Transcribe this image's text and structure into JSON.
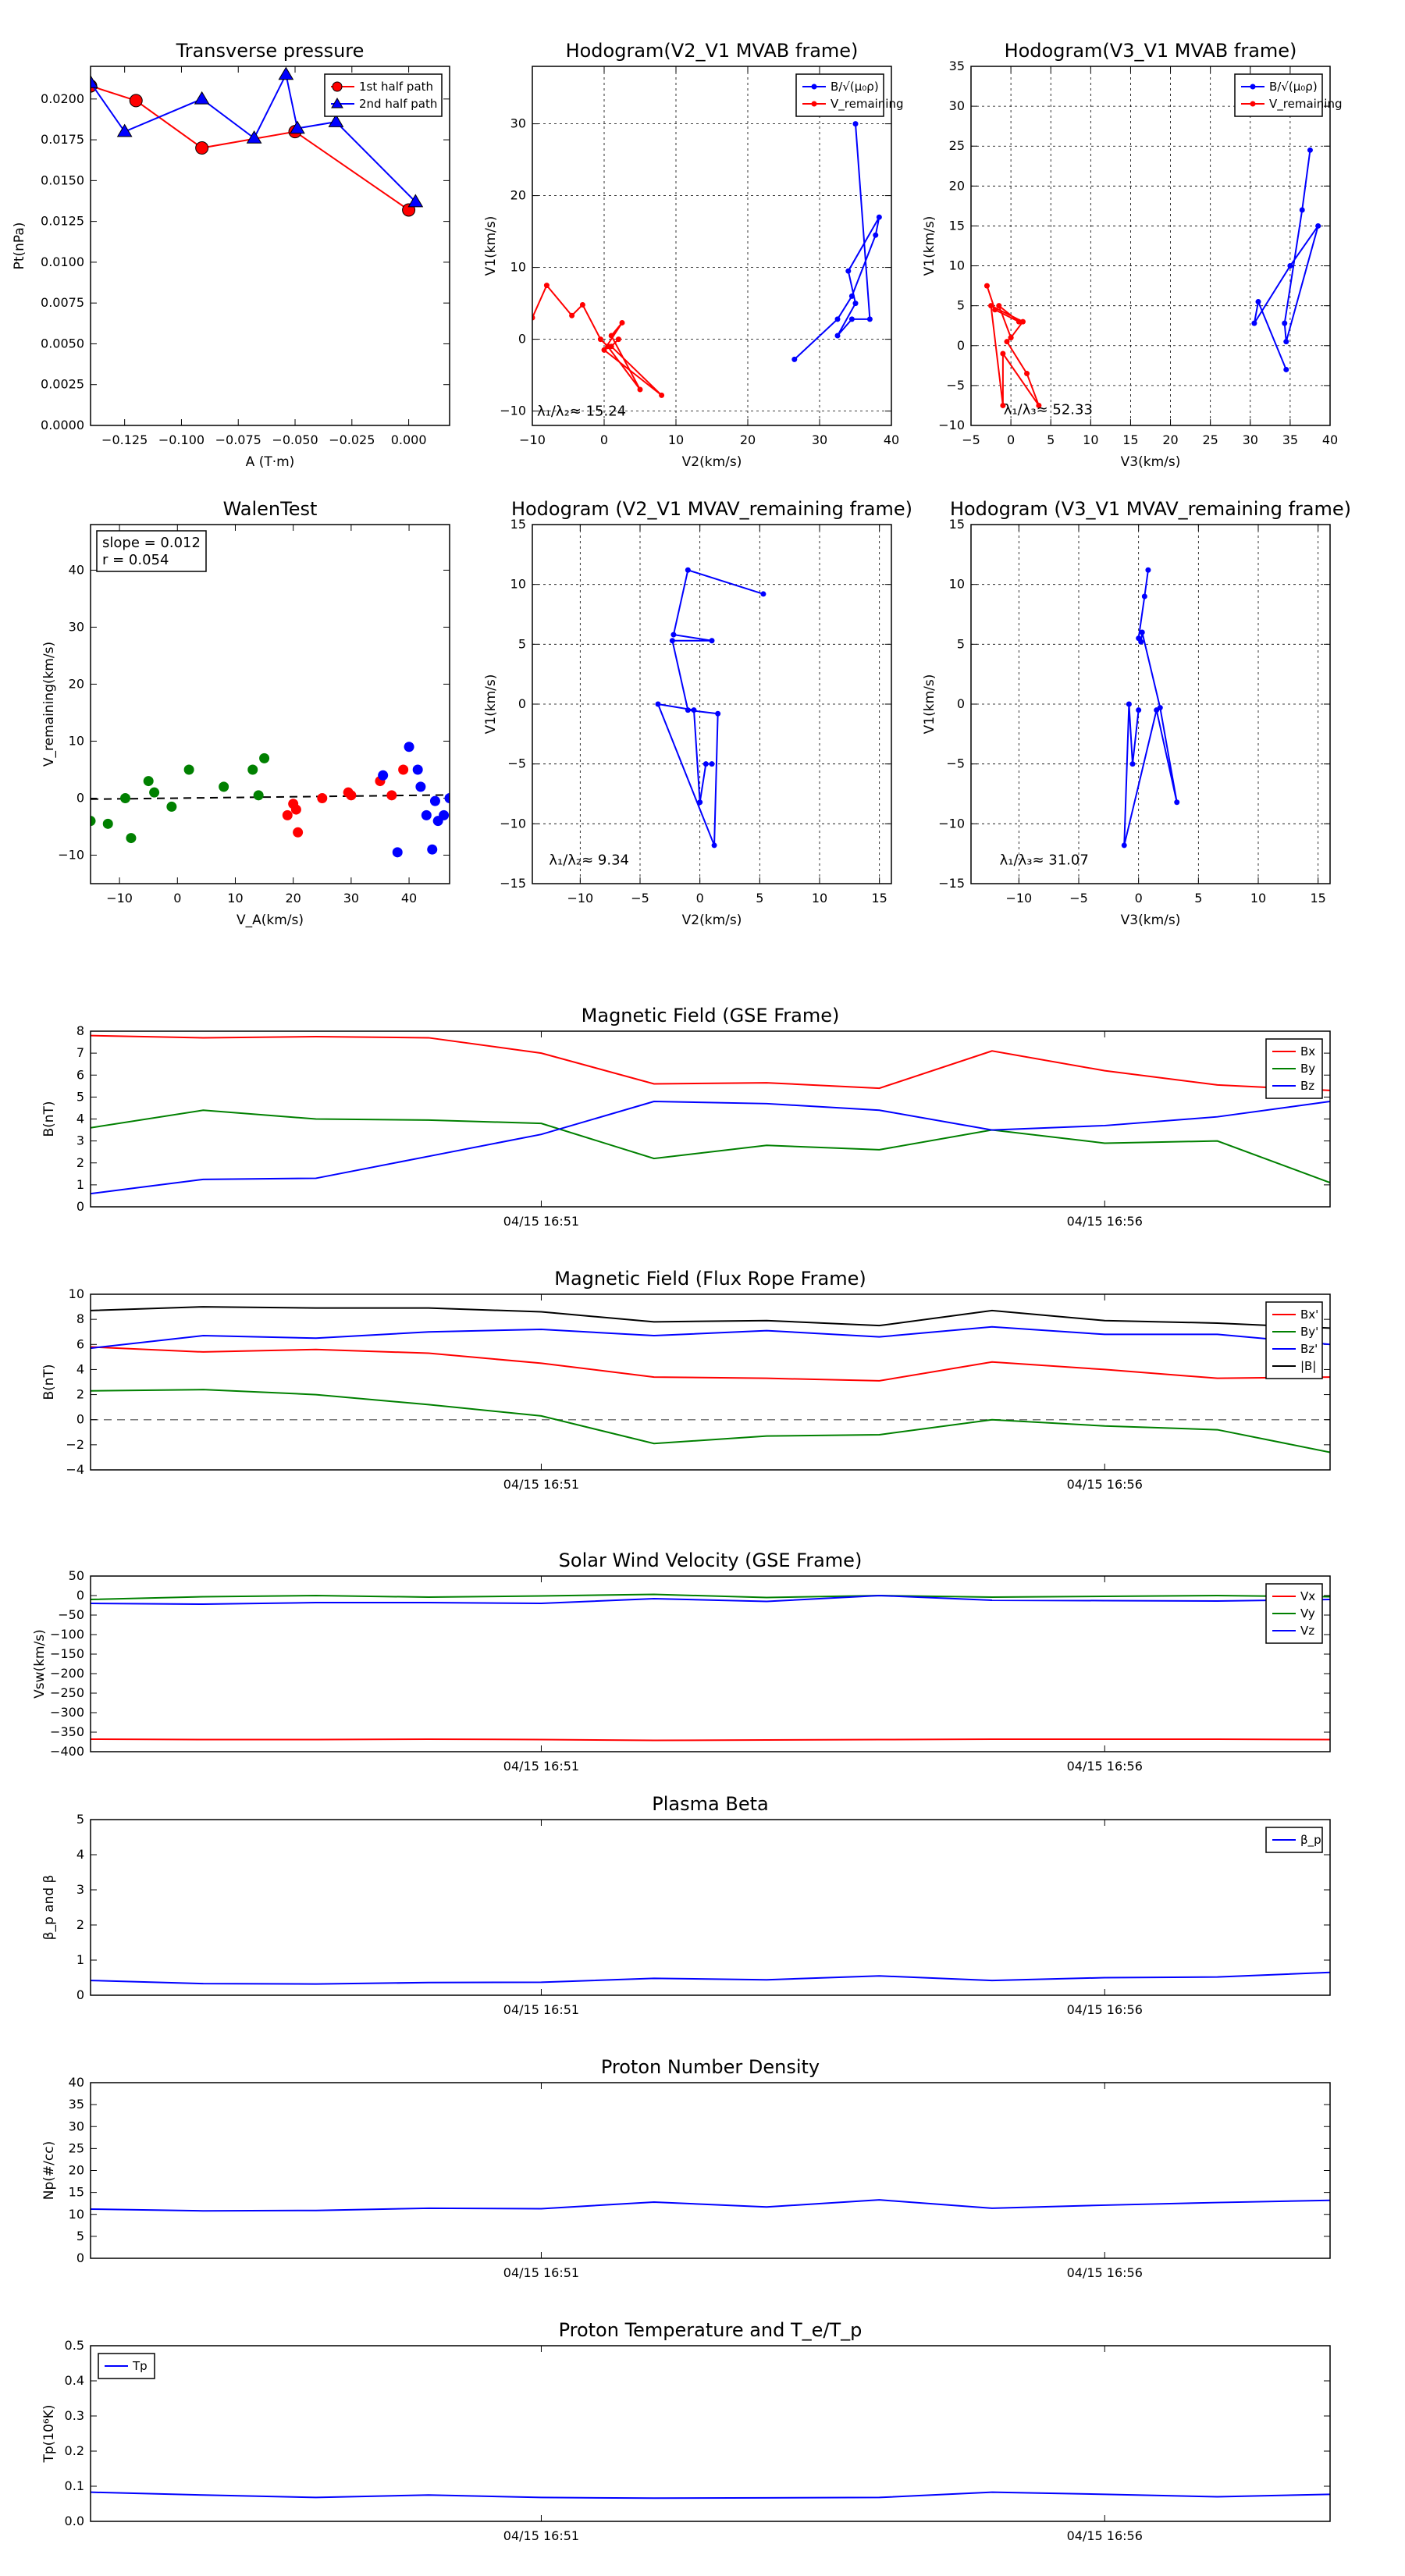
{
  "chart_data": [
    {
      "id": "tp",
      "type": "line",
      "title": "Transverse pressure",
      "xlabel": "A (T·m)",
      "ylabel": "Pt(nPa)",
      "xlim": [
        -0.14,
        0.018
      ],
      "ylim": [
        0,
        0.022
      ],
      "xticks": [
        -0.125,
        -0.1,
        -0.075,
        -0.05,
        -0.025,
        0.0
      ],
      "xtick_labels": [
        "−0.125",
        "−0.100",
        "−0.075",
        "−0.050",
        "−0.025",
        "0.000"
      ],
      "yticks": [
        0,
        0.0025,
        0.005,
        0.0075,
        0.01,
        0.0125,
        0.015,
        0.0175,
        0.02
      ],
      "ytick_labels": [
        "0.0000",
        "0.0025",
        "0.0050",
        "0.0075",
        "0.0100",
        "0.0125",
        "0.0150",
        "0.0175",
        "0.0200"
      ],
      "grid": false,
      "legend": "top-right",
      "series": [
        {
          "name": "1st half path",
          "color": "#ff0000",
          "marker": "circle",
          "x": [
            -0.14,
            -0.12,
            -0.091,
            -0.05,
            0.0
          ],
          "y": [
            0.0208,
            0.0199,
            0.017,
            0.018,
            0.0132
          ]
        },
        {
          "name": "2nd half path",
          "color": "#0000ff",
          "marker": "triangle",
          "x": [
            -0.14,
            -0.125,
            -0.091,
            -0.068,
            -0.054,
            -0.049,
            -0.032,
            0.003
          ],
          "y": [
            0.021,
            0.018,
            0.02,
            0.0176,
            0.0215,
            0.0182,
            0.0186,
            0.0137
          ]
        }
      ]
    },
    {
      "id": "hodo1",
      "type": "line",
      "title": "Hodogram(V2_V1 MVAB frame)",
      "xlabel": "V2(km/s)",
      "ylabel": "V1(km/s)",
      "xlim": [
        -10,
        40
      ],
      "ylim": [
        -12,
        38
      ],
      "xticks": [
        -10,
        0,
        10,
        20,
        30,
        40
      ],
      "xtick_labels": [
        "−10",
        "0",
        "10",
        "20",
        "30",
        "40"
      ],
      "yticks": [
        -10,
        0,
        10,
        20,
        30
      ],
      "ytick_labels": [
        "−10",
        "0",
        "10",
        "20",
        "30"
      ],
      "grid": true,
      "legend": "top-right",
      "annotation": {
        "text": "λ₁/λ₂≈ 15.24",
        "x": -10,
        "y": -10
      },
      "series": [
        {
          "name": "B/√(μ₀ρ)",
          "color": "#0000ff",
          "x": [
            26.5,
            32.5,
            34.5,
            37.8,
            38.3,
            34.0,
            35.0,
            32.5,
            34.5,
            37.0,
            35.0
          ],
          "y": [
            -2.8,
            2.8,
            6.0,
            14.5,
            17.0,
            9.5,
            5.0,
            0.5,
            2.8,
            2.8,
            30.0
          ]
        },
        {
          "name": "V_remaining",
          "color": "#ff0000",
          "x": [
            -10,
            -8,
            -4.5,
            -3,
            -0.5,
            0.5,
            5.0,
            1.0,
            2.5,
            0.0,
            8.0,
            1.0,
            2.0
          ],
          "y": [
            3.0,
            7.5,
            3.3,
            4.8,
            0.0,
            -1.0,
            -7.0,
            0.5,
            2.3,
            -1.5,
            -7.8,
            -1.0,
            0.0
          ]
        }
      ]
    },
    {
      "id": "hodo2",
      "type": "line",
      "title": "Hodogram(V3_V1 MVAB frame)",
      "xlabel": "V3(km/s)",
      "ylabel": "V1(km/s)",
      "xlim": [
        -5,
        40
      ],
      "ylim": [
        -10,
        35
      ],
      "xticks": [
        -5,
        0,
        5,
        10,
        15,
        20,
        25,
        30,
        35,
        40
      ],
      "xtick_labels": [
        "−5",
        "0",
        "5",
        "10",
        "15",
        "20",
        "25",
        "30",
        "35",
        "40"
      ],
      "yticks": [
        -10,
        -5,
        0,
        5,
        10,
        15,
        20,
        25,
        30,
        35
      ],
      "ytick_labels": [
        "−10",
        "−5",
        "0",
        "5",
        "10",
        "15",
        "20",
        "25",
        "30",
        "35"
      ],
      "grid": true,
      "legend": "top-right",
      "annotation": {
        "text": "λ₁/λ₃≈ 52.33",
        "x": -1.5,
        "y": -8.0
      },
      "series": [
        {
          "name": "B/√(μ₀ρ)",
          "color": "#0000ff",
          "x": [
            34.5,
            31.0,
            30.5,
            35.0,
            38.5,
            34.5,
            34.3,
            36.5,
            37.5
          ],
          "y": [
            -3.0,
            5.5,
            2.8,
            10.0,
            15.0,
            0.5,
            2.8,
            17.0,
            24.5
          ]
        },
        {
          "name": "V_remaining",
          "color": "#ff0000",
          "x": [
            -3.0,
            -2.0,
            1.0,
            -1.5,
            0.0,
            -0.5,
            2.0,
            3.5,
            -1.0,
            -1.0,
            -2.5,
            1.5,
            0.0
          ],
          "y": [
            7.5,
            4.5,
            3.0,
            5.0,
            1.0,
            0.5,
            -3.5,
            -7.5,
            -1.0,
            -7.5,
            5.0,
            3.0,
            1.0
          ]
        }
      ]
    },
    {
      "id": "walen",
      "type": "scatter",
      "title": "WalenTest",
      "xlabel": "V_A(km/s)",
      "ylabel": "V_remaining(km/s)",
      "xlim": [
        -15,
        47
      ],
      "ylim": [
        -15,
        48
      ],
      "xticks": [
        -10,
        0,
        10,
        20,
        30,
        40
      ],
      "xtick_labels": [
        "−10",
        "0",
        "10",
        "20",
        "30",
        "40"
      ],
      "yticks": [
        -10,
        0,
        10,
        20,
        30,
        40
      ],
      "ytick_labels": [
        "−10",
        "0",
        "10",
        "20",
        "30",
        "40"
      ],
      "grid": false,
      "fit_line": {
        "slope": 0.012,
        "intercept": 0
      },
      "annotation_lines": [
        "slope = 0.012",
        "r = 0.054"
      ],
      "series": [
        {
          "name": "green",
          "color": "#008000",
          "x": [
            -15,
            -12,
            -9,
            -8,
            -5,
            -4,
            -1,
            2,
            8,
            13,
            14,
            15
          ],
          "y": [
            -4,
            -4.5,
            0,
            -7,
            3,
            1,
            -1.5,
            5,
            2,
            5,
            0.5,
            7
          ]
        },
        {
          "name": "red",
          "color": "#ff0000",
          "x": [
            19,
            20,
            20.5,
            20.8,
            25,
            29.5,
            30,
            35,
            37,
            39
          ],
          "y": [
            -3,
            -1,
            -2,
            -6,
            0,
            1,
            0.5,
            3,
            0.5,
            5
          ]
        },
        {
          "name": "blue",
          "color": "#0000ff",
          "x": [
            35.5,
            38,
            40,
            41.5,
            42,
            43,
            44,
            44.5,
            45,
            46,
            47
          ],
          "y": [
            4,
            -9.5,
            9,
            5,
            2,
            -3,
            -9,
            -0.5,
            -4,
            -3,
            0
          ]
        }
      ]
    },
    {
      "id": "hodo3",
      "type": "line",
      "title": "Hodogram (V2_V1 MVAV_remaining frame)",
      "xlabel": "V2(km/s)",
      "ylabel": "V1(km/s)",
      "xlim": [
        -14,
        16
      ],
      "ylim": [
        -15,
        15
      ],
      "xticks": [
        -10,
        -5,
        0,
        5,
        10,
        15
      ],
      "xtick_labels": [
        "−10",
        "−5",
        "0",
        "5",
        "10",
        "15"
      ],
      "yticks": [
        -15,
        -10,
        -5,
        0,
        5,
        10,
        15
      ],
      "ytick_labels": [
        "−15",
        "−10",
        "−5",
        "0",
        "5",
        "10",
        "15"
      ],
      "grid": true,
      "annotation": {
        "text": "λ₁/λ₂≈ 9.34",
        "x": -13,
        "y": -13
      },
      "series": [
        {
          "name": "V_remaining",
          "color": "#0000ff",
          "x": [
            5.3,
            -1.0,
            -2.2,
            1.0,
            -2.3,
            -1.0,
            1.5,
            1.2,
            -3.5,
            -0.5,
            0.0,
            0.5,
            1.0
          ],
          "y": [
            9.2,
            11.2,
            5.8,
            5.3,
            5.3,
            -0.5,
            -0.8,
            -11.8,
            0.0,
            -0.5,
            -8.2,
            -5.0,
            -5.0
          ]
        }
      ]
    },
    {
      "id": "hodo4",
      "type": "line",
      "title": "Hodogram (V3_V1 MVAV_remaining frame)",
      "xlabel": "V3(km/s)",
      "ylabel": "V1(km/s)",
      "xlim": [
        -14,
        16
      ],
      "ylim": [
        -15,
        15
      ],
      "xticks": [
        -10,
        -5,
        0,
        5,
        10,
        15
      ],
      "xtick_labels": [
        "−10",
        "−5",
        "0",
        "5",
        "10",
        "15"
      ],
      "yticks": [
        -15,
        -10,
        -5,
        0,
        5,
        10,
        15
      ],
      "ytick_labels": [
        "−15",
        "−10",
        "−5",
        "0",
        "5",
        "10",
        "15"
      ],
      "grid": true,
      "annotation": {
        "text": "λ₁/λ₃≈ 31.07",
        "x": -12,
        "y": -13
      },
      "series": [
        {
          "name": "V_remaining",
          "color": "#0000ff",
          "x": [
            0.8,
            0.5,
            0.0,
            0.2,
            0.3,
            1.8,
            3.2,
            1.5,
            -1.2,
            -0.8,
            -0.5,
            0.0
          ],
          "y": [
            11.2,
            9.0,
            5.5,
            5.2,
            6.0,
            -0.3,
            -8.2,
            -0.5,
            -11.8,
            0.0,
            -5.0,
            -0.5
          ]
        }
      ]
    },
    {
      "id": "mag_gse",
      "type": "line",
      "title": "Magnetic Field (GSE Frame)",
      "ylabel": "B(nT)",
      "ylim": [
        0,
        8
      ],
      "yticks": [
        0,
        1,
        2,
        3,
        4,
        5,
        6,
        7,
        8
      ],
      "ytick_labels": [
        "0",
        "1",
        "2",
        "3",
        "4",
        "5",
        "6",
        "7",
        "8"
      ],
      "xlim": [
        0,
        11
      ],
      "xticks": [
        4,
        9
      ],
      "xtick_labels": [
        "04/15 16:51",
        "04/15 16:56"
      ],
      "grid": false,
      "legend": "top-right",
      "series": [
        {
          "name": "Bx",
          "color": "#ff0000",
          "values": [
            7.8,
            7.7,
            7.75,
            7.7,
            7.0,
            5.6,
            5.65,
            5.4,
            7.1,
            6.2,
            5.55,
            5.3
          ]
        },
        {
          "name": "By",
          "color": "#008000",
          "values": [
            3.6,
            4.4,
            4.0,
            3.95,
            3.8,
            2.2,
            2.8,
            2.6,
            3.5,
            2.9,
            3.0,
            1.1
          ]
        },
        {
          "name": "Bz",
          "color": "#0000ff",
          "values": [
            0.6,
            1.25,
            1.3,
            2.3,
            3.3,
            4.8,
            4.7,
            4.4,
            3.5,
            3.7,
            4.1,
            4.8
          ]
        }
      ]
    },
    {
      "id": "mag_fr",
      "type": "line",
      "title": "Magnetic Field (Flux Rope Frame)",
      "ylabel": "B(nT)",
      "ylim": [
        -4,
        10
      ],
      "yticks": [
        -4,
        -2,
        0,
        2,
        4,
        6,
        8,
        10
      ],
      "ytick_labels": [
        "−4",
        "−2",
        "0",
        "2",
        "4",
        "6",
        "8",
        "10"
      ],
      "xlim": [
        0,
        11
      ],
      "xticks": [
        4,
        9
      ],
      "xtick_labels": [
        "04/15 16:51",
        "04/15 16:56"
      ],
      "grid": false,
      "zero_line": true,
      "legend": "top-right",
      "series": [
        {
          "name": "Bx'",
          "color": "#ff0000",
          "values": [
            5.8,
            5.4,
            5.6,
            5.3,
            4.5,
            3.4,
            3.3,
            3.1,
            4.6,
            4.0,
            3.3,
            3.4
          ]
        },
        {
          "name": "By'",
          "color": "#008000",
          "values": [
            2.3,
            2.4,
            2.0,
            1.2,
            0.3,
            -1.9,
            -1.3,
            -1.2,
            0.0,
            -0.5,
            -0.8,
            -2.6
          ]
        },
        {
          "name": "Bz'",
          "color": "#0000ff",
          "values": [
            5.7,
            6.7,
            6.5,
            7.0,
            7.2,
            6.7,
            7.1,
            6.6,
            7.4,
            6.8,
            6.8,
            6.0
          ]
        },
        {
          "name": "|B|",
          "color": "#000000",
          "values": [
            8.7,
            9.0,
            8.9,
            8.9,
            8.6,
            7.8,
            7.9,
            7.5,
            8.7,
            7.9,
            7.7,
            7.3
          ]
        }
      ]
    },
    {
      "id": "vsw",
      "type": "line",
      "title": "Solar Wind Velocity (GSE Frame)",
      "ylabel": "Vsw(km/s)",
      "ylim": [
        -400,
        50
      ],
      "yticks": [
        -400,
        -350,
        -300,
        -250,
        -200,
        -150,
        -100,
        -50,
        0,
        50
      ],
      "ytick_labels": [
        "−400",
        "−350",
        "−300",
        "−250",
        "−200",
        "−150",
        "−100",
        "−50",
        "0",
        "50"
      ],
      "xlim": [
        0,
        11
      ],
      "xticks": [
        4,
        9
      ],
      "xtick_labels": [
        "04/15 16:51",
        "04/15 16:56"
      ],
      "grid": false,
      "legend": "top-right",
      "series": [
        {
          "name": "Vx",
          "color": "#ff0000",
          "values": [
            -368,
            -369,
            -369,
            -368,
            -369,
            -371,
            -370,
            -369,
            -368,
            -368,
            -368,
            -369
          ]
        },
        {
          "name": "Vy",
          "color": "#008000",
          "values": [
            -10,
            -3,
            0,
            -4,
            -1,
            3,
            -5,
            0,
            -4,
            -2,
            0,
            -3
          ]
        },
        {
          "name": "Vz",
          "color": "#0000ff",
          "values": [
            -20,
            -22,
            -18,
            -18,
            -20,
            -8,
            -15,
            0,
            -12,
            -13,
            -14,
            -10
          ]
        }
      ]
    },
    {
      "id": "beta",
      "type": "line",
      "title": "Plasma Beta",
      "ylabel": "β_p and β",
      "ylim": [
        0,
        5
      ],
      "yticks": [
        0,
        1,
        2,
        3,
        4,
        5
      ],
      "ytick_labels": [
        "0",
        "1",
        "2",
        "3",
        "4",
        "5"
      ],
      "xlim": [
        0,
        11
      ],
      "xticks": [
        4,
        9
      ],
      "xtick_labels": [
        "04/15 16:51",
        "04/15 16:56"
      ],
      "grid": false,
      "legend": "top-right",
      "series": [
        {
          "name": "β_p",
          "color": "#0000ff",
          "values": [
            0.42,
            0.33,
            0.32,
            0.36,
            0.37,
            0.48,
            0.44,
            0.55,
            0.42,
            0.5,
            0.52,
            0.65
          ]
        }
      ]
    },
    {
      "id": "np",
      "type": "line",
      "title": "Proton Number Density",
      "ylabel": "Np(#/cc)",
      "ylim": [
        0,
        40
      ],
      "yticks": [
        0,
        5,
        10,
        15,
        20,
        25,
        30,
        35,
        40
      ],
      "ytick_labels": [
        "0",
        "5",
        "10",
        "15",
        "20",
        "25",
        "30",
        "35",
        "40"
      ],
      "xlim": [
        0,
        11
      ],
      "xticks": [
        4,
        9
      ],
      "xtick_labels": [
        "04/15 16:51",
        "04/15 16:56"
      ],
      "grid": false,
      "series": [
        {
          "name": "Np",
          "color": "#0000ff",
          "values": [
            11.2,
            10.8,
            10.9,
            11.4,
            11.3,
            12.8,
            11.7,
            13.3,
            11.4,
            12.1,
            12.7,
            13.2
          ]
        }
      ]
    },
    {
      "id": "tp_temp",
      "type": "line",
      "title": "Proton Temperature and T_e/T_p",
      "ylabel": "Tp(10⁶K)",
      "ylim": [
        0,
        0.5
      ],
      "yticks": [
        0,
        0.1,
        0.2,
        0.3,
        0.4,
        0.5
      ],
      "ytick_labels": [
        "0.0",
        "0.1",
        "0.2",
        "0.3",
        "0.4",
        "0.5"
      ],
      "xlim": [
        0,
        11
      ],
      "xticks": [
        4,
        9
      ],
      "xtick_labels": [
        "04/15 16:51",
        "04/15 16:56"
      ],
      "grid": false,
      "legend": "top-left",
      "series": [
        {
          "name": "Tp",
          "color": "#0000ff",
          "values": [
            0.083,
            0.075,
            0.068,
            0.075,
            0.068,
            0.066,
            0.067,
            0.068,
            0.083,
            0.077,
            0.07,
            0.077
          ]
        }
      ]
    }
  ]
}
